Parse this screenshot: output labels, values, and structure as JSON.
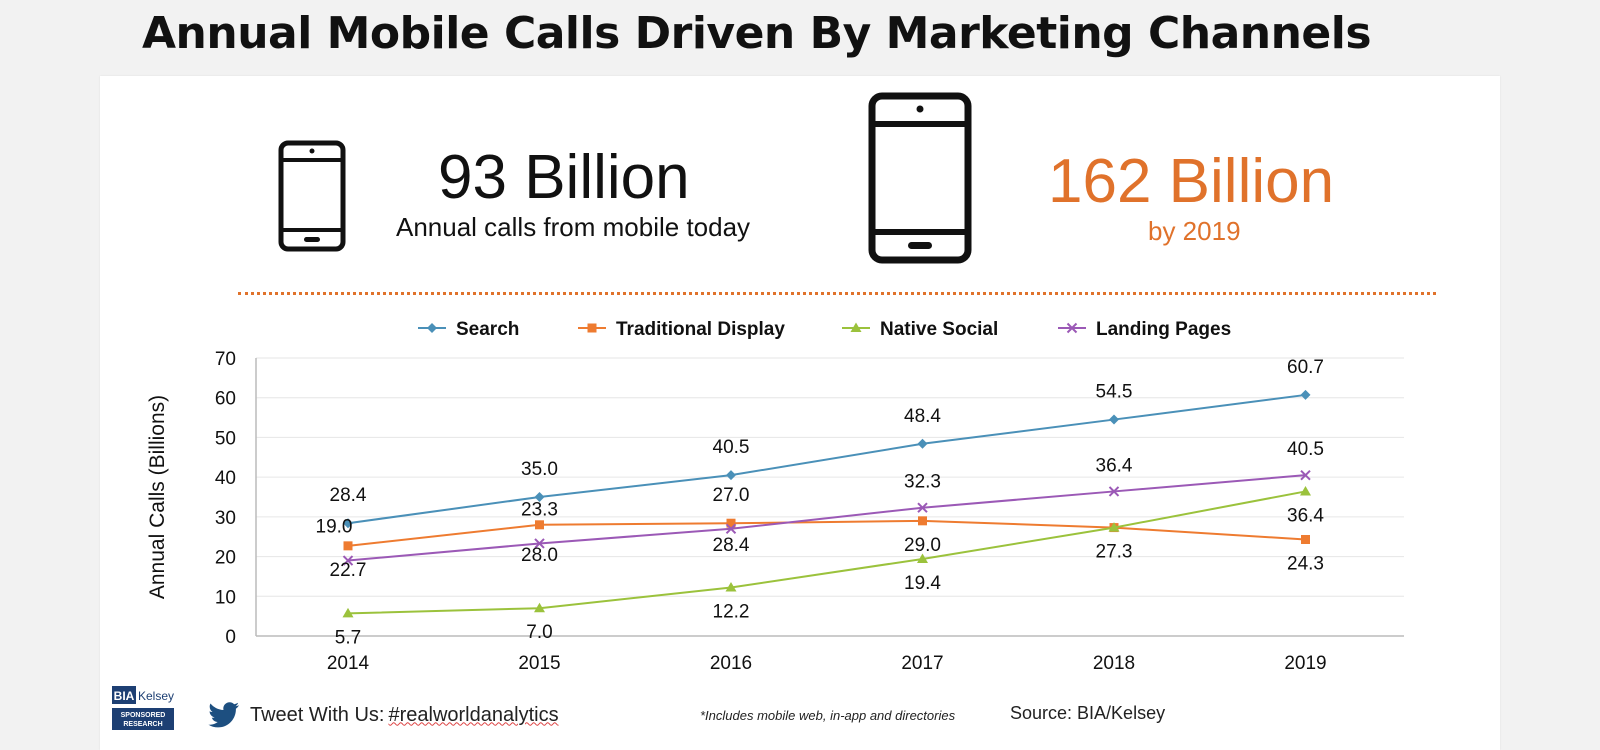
{
  "page": {
    "title": "Annual Mobile Calls Driven By Marketing Channels"
  },
  "stats": {
    "left_value": "93 Billion",
    "left_caption": "Annual calls from mobile today",
    "right_value": "162 Billion",
    "right_caption": "by 2019"
  },
  "colors": {
    "accent": "#e0722b",
    "search": "#4a90b8",
    "traditional_display": "#ee7b30",
    "native_social": "#9bc23c",
    "landing_pages": "#9b59b6"
  },
  "chart_data": {
    "type": "line",
    "title": "",
    "xlabel": "",
    "ylabel": "Annual Calls (Billions)",
    "x": [
      "2014",
      "2015",
      "2016",
      "2017",
      "2018",
      "2019"
    ],
    "ylim": [
      0,
      70
    ],
    "yticks": [
      0,
      10,
      20,
      30,
      40,
      50,
      60,
      70
    ],
    "grid": true,
    "legend_position": "top",
    "series": [
      {
        "name": "Search",
        "color": "#4a90b8",
        "marker": "diamond",
        "values": [
          28.4,
          35.0,
          40.5,
          48.4,
          54.5,
          60.7
        ],
        "labels": [
          "28.4",
          "35.0",
          "40.5",
          "48.4",
          "54.5",
          "60.7"
        ]
      },
      {
        "name": "Traditional Display",
        "color": "#ee7b30",
        "marker": "square",
        "values": [
          22.7,
          28.0,
          28.4,
          29.0,
          27.3,
          24.3
        ],
        "labels": [
          "22.7",
          "28.0",
          "28.4",
          "29.0",
          "27.3",
          "24.3"
        ]
      },
      {
        "name": "Native Social",
        "color": "#9bc23c",
        "marker": "triangle",
        "values": [
          5.7,
          7.0,
          12.2,
          19.4,
          27.3,
          36.4
        ],
        "labels": [
          "5.7",
          "7.0",
          "12.2",
          "19.4",
          "",
          "36.4"
        ]
      },
      {
        "name": "Landing Pages",
        "color": "#9b59b6",
        "marker": "x",
        "values": [
          19.0,
          23.3,
          27.0,
          32.3,
          36.4,
          40.5
        ],
        "labels": [
          "19.0",
          "23.3",
          "27.0",
          "32.3",
          "36.4",
          "40.5"
        ]
      }
    ]
  },
  "footer": {
    "logo_text": "BIA Kelsey",
    "logo_sub": "SPONSORED RESEARCH",
    "tweet_prefix": "Tweet With Us: ",
    "tweet_hashtag": "#realworldanalytics",
    "footnote": "*Includes mobile web, in-app and directories",
    "source": "Source: BIA/Kelsey",
    "twitter_icon": "twitter-bird-icon"
  }
}
